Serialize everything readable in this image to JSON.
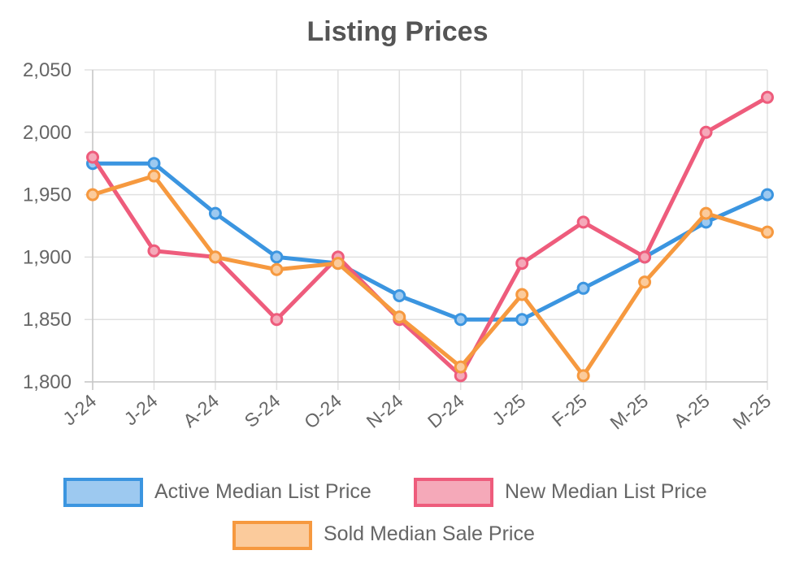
{
  "chart_data": {
    "type": "line",
    "title": "Listing Prices",
    "categories": [
      "J-24",
      "J-24",
      "A-24",
      "S-24",
      "O-24",
      "N-24",
      "D-24",
      "J-25",
      "F-25",
      "M-25",
      "A-25",
      "M-25"
    ],
    "y_ticks": [
      "1,800",
      "1,850",
      "1,900",
      "1,950",
      "2,000",
      "2,050"
    ],
    "ylim": [
      1800,
      2050
    ],
    "grid": true,
    "legend_position": "bottom",
    "series": [
      {
        "name": "Active Median List Price",
        "color": "#3b95e0",
        "fill": "#9dc9f0",
        "values": [
          1975,
          1975,
          1935,
          1900,
          1895,
          1869,
          1850,
          1850,
          1875,
          1900,
          1928,
          1950
        ]
      },
      {
        "name": "New Median List Price",
        "color": "#ee5c7c",
        "fill": "#f5a9b9",
        "values": [
          1980,
          1905,
          1900,
          1850,
          1900,
          1850,
          1805,
          1895,
          1928,
          1900,
          2000,
          2028
        ]
      },
      {
        "name": "Sold Median Sale Price",
        "color": "#f6993f",
        "fill": "#fbcb9c",
        "values": [
          1950,
          1965,
          1900,
          1890,
          1895,
          1852,
          1812,
          1870,
          1805,
          1880,
          1935,
          1920
        ]
      }
    ]
  }
}
